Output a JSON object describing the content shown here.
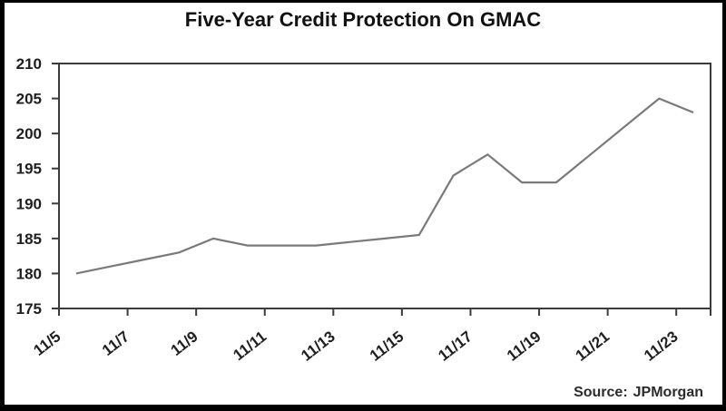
{
  "title": "Five-Year Credit Protection On GMAC",
  "source": {
    "prefix": "Source:",
    "name": "JPMorgan"
  },
  "colors": {
    "line": "#7a7a7a",
    "axis": "#3c3c3c",
    "tick_text": "#1f1f1f",
    "frame": "#000000",
    "background": "#ffffff"
  },
  "chart_data": {
    "type": "line",
    "title": "Five-Year Credit Protection On GMAC",
    "source": "JPMorgan",
    "categories": [
      "11/5",
      "11/6",
      "11/7",
      "11/8",
      "11/9",
      "11/10",
      "11/11",
      "11/12",
      "11/13",
      "11/14",
      "11/15",
      "11/16",
      "11/17",
      "11/18",
      "11/19",
      "11/20",
      "11/21",
      "11/22",
      "11/23"
    ],
    "values": [
      180,
      181,
      182,
      183,
      185,
      184,
      184,
      184,
      184.5,
      185,
      185.5,
      194,
      197,
      193,
      193,
      197,
      201,
      205,
      203
    ],
    "xtick_labels": [
      "11/5",
      "11/7",
      "11/9",
      "11/11",
      "11/13",
      "11/15",
      "11/17",
      "11/19",
      "11/21",
      "11/23"
    ],
    "xtick_every": 2,
    "ylim": [
      175,
      210
    ],
    "ytick_step": 5,
    "ytick_labels": [
      "175",
      "180",
      "185",
      "190",
      "195",
      "200",
      "205",
      "210"
    ],
    "grid": false,
    "legend_position": "none",
    "xlabel": "",
    "ylabel": ""
  }
}
